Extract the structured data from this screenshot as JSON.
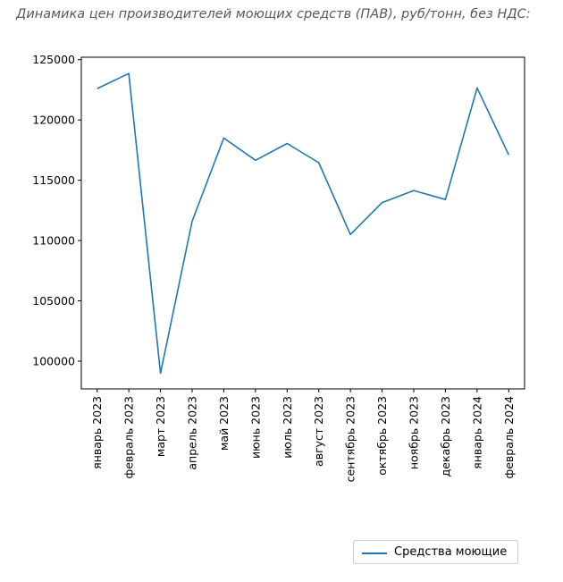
{
  "title": "Динамика цен производителей моющих средств (ПАВ), руб/тонн, без НДС:",
  "colors": {
    "line": "#1f77b4",
    "axis": "#000000",
    "legend_border": "#cccccc"
  },
  "chart_data": {
    "type": "line",
    "title": "Динамика цен производителей моющих средств (ПАВ), руб/тонн, без НДС:",
    "xlabel": "",
    "ylabel": "",
    "categories": [
      "январь 2023",
      "февраль 2023",
      "март 2023",
      "апрель 2023",
      "май 2023",
      "июнь 2023",
      "июль 2023",
      "август 2023",
      "сентябрь 2023",
      "октябрь 2023",
      "ноябрь 2023",
      "декабрь 2023",
      "январь 2024",
      "февраль 2024"
    ],
    "series": [
      {
        "name": "Средства моющие",
        "values": [
          122600,
          123850,
          99000,
          111600,
          118500,
          116650,
          118050,
          116450,
          110500,
          113150,
          114150,
          113400,
          122650,
          117100
        ]
      }
    ],
    "yticks": [
      100000,
      105000,
      110000,
      115000,
      120000,
      125000
    ],
    "ylim": [
      97700,
      125200
    ],
    "grid": false,
    "legend_position": "bottom-right"
  }
}
